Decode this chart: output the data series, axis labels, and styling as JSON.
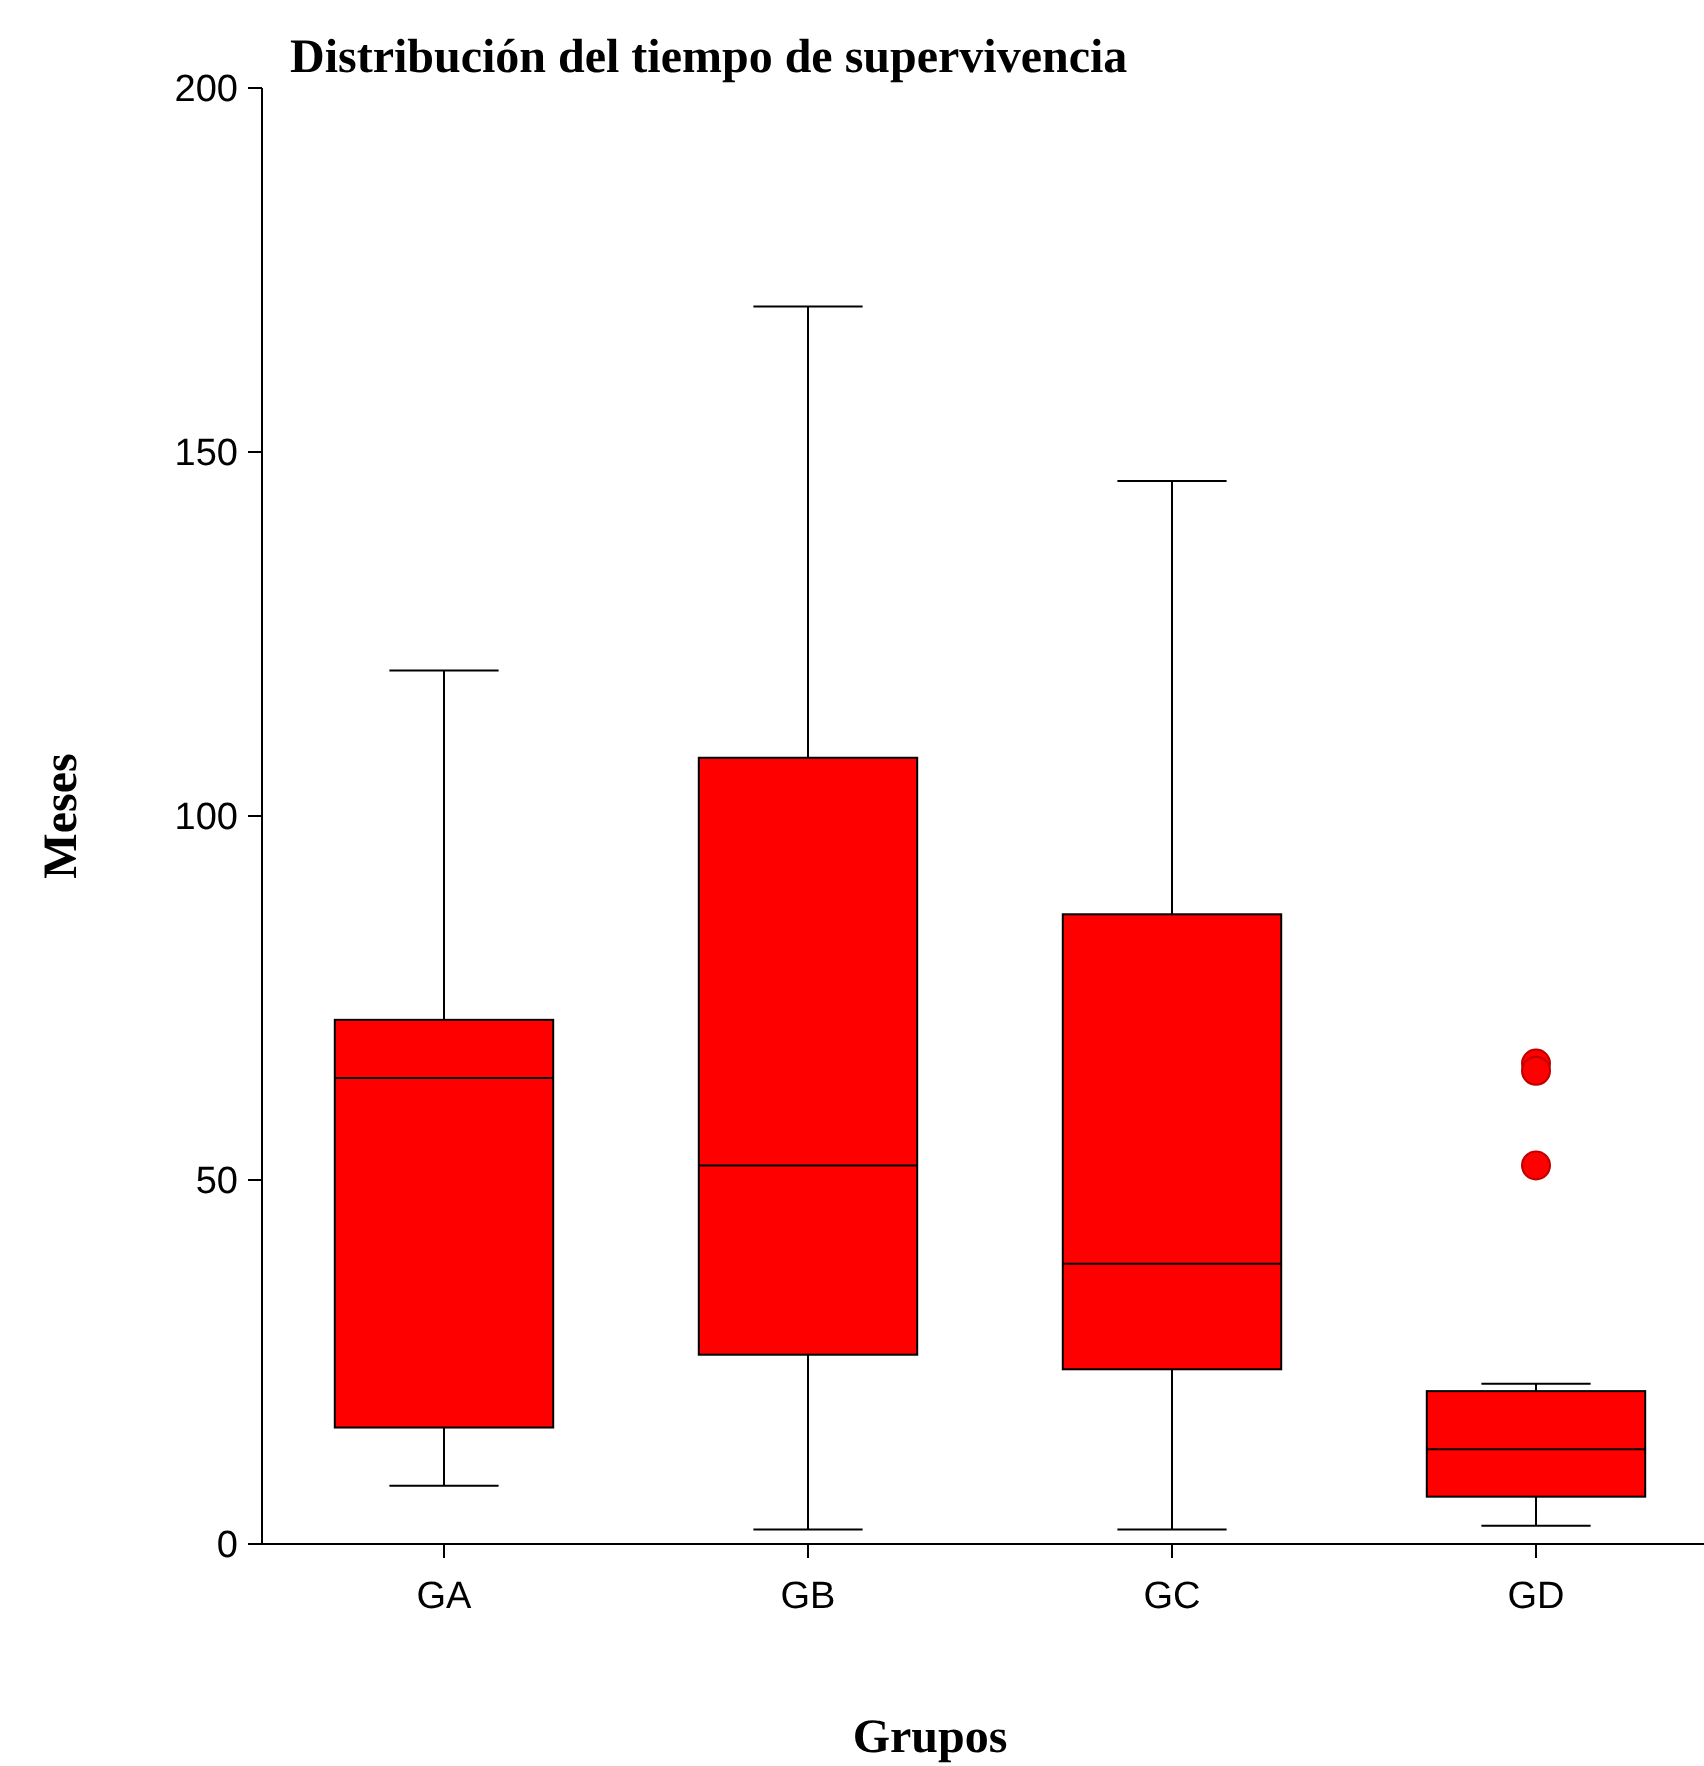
{
  "chart_data": {
    "type": "box",
    "title": "Distribución del tiempo de supervivencia",
    "xlabel": "Grupos",
    "ylabel": "Meses",
    "categories": [
      "GA",
      "GB",
      "GC",
      "GD"
    ],
    "color": "#ff0000",
    "boxes": [
      {
        "low": 8,
        "q1": 16,
        "median": 64,
        "q3": 72,
        "high": 120
      },
      {
        "low": 2,
        "q1": 26,
        "median": 52,
        "q3": 108,
        "high": 170
      },
      {
        "low": 2,
        "q1": 24,
        "median": 38.5,
        "q3": 86.5,
        "high": 146
      },
      {
        "low": 2.5,
        "q1": 6.5,
        "median": 13,
        "q3": 21,
        "high": 22,
        "outliers": [
          66,
          65,
          52
        ]
      }
    ],
    "ylim": [
      0,
      200
    ],
    "yticks": [
      0,
      50,
      100,
      150,
      200
    ]
  }
}
